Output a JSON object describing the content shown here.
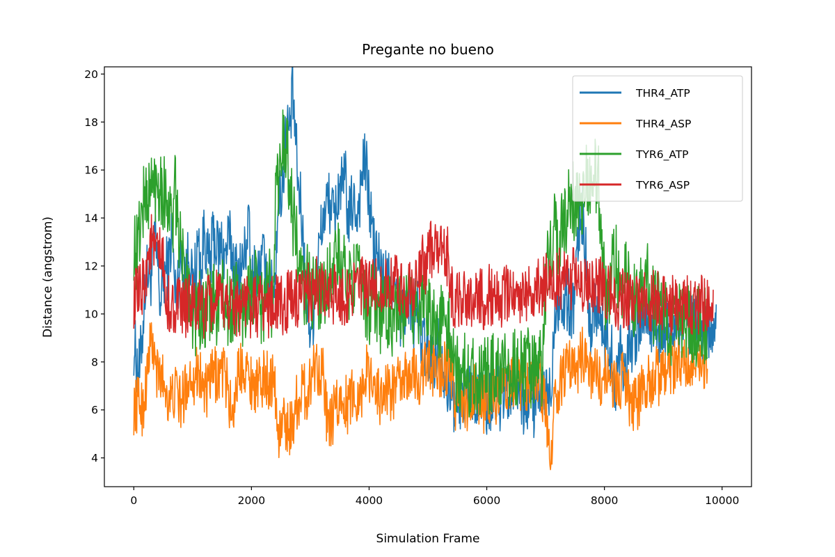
{
  "chart_data": {
    "type": "line",
    "title": "Pregante no bueno",
    "xlabel": "Simulation Frame",
    "ylabel": "Distance (angstrom)",
    "xlim": [
      -500,
      10500
    ],
    "ylim": [
      2.8,
      20.3
    ],
    "x_ticks": [
      0,
      2000,
      4000,
      6000,
      8000,
      10000
    ],
    "x_tick_labels": [
      "0",
      "2000",
      "4000",
      "6000",
      "8000",
      "10000"
    ],
    "y_ticks": [
      4,
      6,
      8,
      10,
      12,
      14,
      16,
      18,
      20
    ],
    "y_tick_labels": [
      "4",
      "6",
      "8",
      "10",
      "12",
      "14",
      "16",
      "18",
      "20"
    ],
    "grid": false,
    "legend_position": "upper-right",
    "x_step": 50,
    "series": [
      {
        "name": "THR4_ATP",
        "color": "#1f77b4",
        "noise": 1.4,
        "values": [
          8.8,
          8.0,
          7.6,
          9.4,
          11.5,
          11.8,
          11.6,
          13.1,
          12.2,
          10.4,
          11.4,
          11.9,
          12.0,
          13.6,
          10.7,
          11.5,
          12.3,
          11.8,
          11.9,
          12.9,
          10.7,
          12.0,
          13.0,
          11.6,
          13.8,
          12.2,
          12.0,
          13.3,
          12.9,
          12.6,
          12.9,
          12.3,
          13.0,
          12.9,
          12.1,
          11.7,
          11.9,
          12.0,
          12.7,
          13.9,
          11.0,
          11.7,
          11.5,
          11.8,
          12.4,
          11.2,
          11.7,
          10.8,
          11.3,
          14.8,
          15.0,
          16.1,
          18.0,
          17.5,
          19.2,
          17.3,
          15.1,
          14.3,
          12.1,
          10.1,
          9.5,
          10.1,
          11.5,
          12.7,
          13.7,
          14.3,
          14.7,
          14.6,
          13.8,
          14.6,
          15.5,
          15.1,
          15.6,
          13.6,
          14.6,
          14.5,
          14.2,
          15.1,
          16.3,
          16.1,
          14.7,
          13.6,
          12.3,
          12.5,
          11.8,
          11.3,
          11.6,
          11.0,
          11.6,
          10.8,
          10.3,
          9.6,
          10.4,
          9.8,
          10.9,
          9.6,
          10.5,
          9.5,
          8.9,
          8.6,
          8.3,
          8.2,
          8.1,
          8.8,
          8.5,
          8.0,
          7.7,
          7.0,
          6.6,
          6.4,
          6.2,
          6.6,
          6.7,
          6.6,
          7.2,
          6.4,
          6.8,
          6.1,
          6.8,
          7.2,
          6.1,
          6.4,
          6.4,
          6.3,
          6.9,
          6.1,
          6.7,
          6.3,
          6.8,
          6.7,
          7.2,
          6.7,
          6.1,
          6.1,
          6.5,
          6.8,
          6.2,
          6.5,
          6.6,
          6.5,
          6.9,
          6.4,
          7.1,
          10.2,
          10.6,
          10.6,
          10.1,
          10.7,
          10.5,
          10.2,
          10.9,
          12.8,
          14.3,
          13.9,
          11.4,
          9.6,
          9.9,
          10.6,
          10.2,
          9.3,
          9.0,
          9.1,
          8.6,
          7.9,
          6.9,
          8.6,
          8.6,
          7.3,
          9.1,
          8.9,
          8.7,
          8.9,
          9.5,
          10.0,
          10.2,
          9.4,
          9.3,
          9.7,
          9.7,
          8.8,
          9.2,
          9.5,
          9.0,
          9.1,
          9.3,
          9.7,
          9.1,
          9.6,
          9.3,
          9.1,
          9.5,
          9.5,
          9.7,
          9.1,
          9.2,
          9.4,
          9.2,
          9.7,
          10.0
        ]
      },
      {
        "name": "THR4_ASP",
        "color": "#ff7f0e",
        "noise": 1.2,
        "values": [
          6.1,
          6.2,
          6.4,
          6.0,
          6.9,
          8.1,
          9.0,
          8.1,
          7.4,
          7.4,
          7.3,
          6.8,
          6.5,
          6.4,
          6.8,
          6.6,
          6.2,
          6.6,
          7.1,
          7.4,
          7.5,
          7.3,
          7.9,
          7.1,
          6.9,
          6.6,
          7.3,
          7.4,
          7.5,
          7.4,
          7.7,
          7.4,
          6.9,
          5.9,
          6.1,
          7.3,
          7.6,
          8.0,
          7.9,
          7.3,
          7.2,
          7.1,
          7.0,
          7.0,
          7.3,
          7.4,
          7.2,
          7.3,
          7.0,
          4.8,
          5.2,
          5.5,
          5.4,
          5.2,
          5.4,
          6.3,
          6.4,
          6.8,
          6.8,
          6.6,
          7.2,
          7.8,
          8.0,
          7.7,
          7.9,
          6.5,
          5.2,
          5.3,
          5.9,
          6.2,
          6.0,
          6.9,
          6.3,
          6.0,
          6.9,
          6.3,
          6.7,
          6.7,
          6.9,
          7.7,
          7.3,
          7.6,
          7.1,
          6.7,
          6.4,
          6.8,
          6.9,
          6.7,
          6.8,
          6.8,
          7.2,
          7.0,
          7.2,
          7.3,
          7.7,
          7.5,
          7.4,
          7.2,
          7.6,
          7.8,
          7.8,
          7.6,
          7.8,
          8.0,
          7.6,
          7.9,
          7.6,
          7.7,
          7.6,
          6.3,
          6.4,
          6.9,
          6.4,
          6.2,
          6.1,
          6.4,
          6.8,
          6.4,
          6.8,
          6.2,
          6.9,
          6.5,
          6.9,
          6.5,
          6.8,
          7.1,
          6.8,
          7.2,
          7.0,
          7.1,
          6.8,
          7.2,
          7.1,
          7.2,
          7.0,
          7.5,
          7.7,
          7.4,
          7.6,
          6.3,
          6.1,
          4.9,
          4.2,
          6.5,
          6.5,
          7.1,
          7.5,
          7.6,
          7.8,
          7.5,
          7.9,
          7.9,
          8.2,
          8.3,
          8.5,
          7.5,
          7.6,
          7.8,
          7.2,
          7.0,
          7.3,
          7.6,
          7.2,
          7.3,
          7.3,
          6.8,
          7.2,
          7.4,
          6.5,
          6.5,
          6.3,
          6.3,
          6.4,
          6.9,
          7.1,
          7.1,
          7.2,
          7.4,
          7.5,
          7.2,
          7.6,
          7.6,
          7.7,
          7.7,
          7.7,
          8.0,
          7.9,
          7.8,
          7.8,
          7.7,
          7.7,
          7.8,
          7.6,
          7.8,
          7.9,
          7.9
        ]
      },
      {
        "name": "TYR6_ATP",
        "color": "#2ca02c",
        "noise": 1.7,
        "values": [
          13.0,
          12.5,
          13.5,
          14.5,
          14.9,
          14.9,
          15.3,
          15.3,
          15.6,
          15.5,
          15.1,
          15.0,
          14.5,
          13.5,
          15.0,
          14.1,
          12.3,
          12.0,
          11.4,
          11.3,
          10.0,
          9.9,
          10.5,
          9.5,
          9.7,
          10.3,
          10.2,
          10.6,
          10.0,
          10.8,
          10.9,
          10.2,
          10.2,
          9.9,
          10.8,
          10.7,
          10.0,
          10.1,
          10.1,
          11.3,
          10.6,
          11.0,
          10.9,
          10.4,
          10.2,
          10.8,
          11.3,
          10.3,
          14.3,
          15.7,
          15.9,
          17.6,
          16.9,
          15.5,
          14.2,
          13.5,
          12.0,
          11.5,
          10.8,
          11.3,
          10.8,
          10.8,
          10.8,
          11.1,
          11.0,
          10.7,
          11.5,
          12.0,
          11.8,
          12.4,
          12.1,
          11.6,
          11.9,
          11.4,
          11.6,
          11.8,
          11.5,
          11.0,
          11.3,
          10.6,
          10.3,
          10.5,
          10.8,
          10.1,
          10.0,
          10.2,
          9.9,
          10.0,
          9.8,
          9.7,
          9.9,
          10.0,
          10.1,
          10.1,
          10.4,
          10.2,
          10.7,
          10.3,
          10.1,
          10.3,
          10.8,
          10.0,
          9.7,
          9.5,
          9.4,
          9.7,
          9.5,
          9.5,
          8.8,
          7.4,
          7.7,
          7.4,
          7.5,
          7.7,
          7.3,
          7.8,
          7.7,
          7.3,
          7.2,
          7.6,
          7.7,
          7.4,
          7.6,
          7.5,
          7.6,
          7.9,
          7.6,
          7.6,
          7.8,
          7.7,
          7.7,
          8.1,
          7.6,
          7.6,
          7.9,
          7.5,
          7.7,
          7.6,
          7.6,
          7.8,
          10.9,
          12.3,
          12.6,
          13.5,
          13.1,
          13.3,
          14.5,
          13.7,
          14.7,
          15.1,
          14.4,
          14.4,
          14.1,
          15.6,
          15.6,
          15.5,
          15.7,
          15.6,
          15.5,
          12.2,
          11.2,
          10.7,
          11.1,
          11.9,
          12.1,
          11.7,
          11.1,
          11.9,
          11.3,
          11.0,
          10.7,
          11.3,
          11.2,
          11.2,
          11.5,
          11.1,
          10.4,
          10.2,
          10.2,
          10.3,
          9.8,
          10.3,
          9.6,
          9.5,
          9.7,
          9.5,
          9.8,
          9.4,
          9.4,
          9.6,
          9.2,
          9.5,
          9.5,
          9.5,
          9.5,
          9.3
        ]
      },
      {
        "name": "TYR6_ASP",
        "color": "#d62728",
        "noise": 1.3,
        "values": [
          10.6,
          10.7,
          10.7,
          11.2,
          11.7,
          12.5,
          13.0,
          12.4,
          12.5,
          12.3,
          12.2,
          10.0,
          10.5,
          10.1,
          10.4,
          10.4,
          10.0,
          10.4,
          10.2,
          10.6,
          10.4,
          10.0,
          10.3,
          10.4,
          10.1,
          10.4,
          10.3,
          10.3,
          10.7,
          10.4,
          10.4,
          10.5,
          10.4,
          10.5,
          10.5,
          10.3,
          10.4,
          10.6,
          10.4,
          10.5,
          10.1,
          10.3,
          10.3,
          10.5,
          10.4,
          10.2,
          10.3,
          10.4,
          10.5,
          10.4,
          10.3,
          10.2,
          10.4,
          10.9,
          10.6,
          10.6,
          10.4,
          10.4,
          10.7,
          10.9,
          11.0,
          11.0,
          11.2,
          10.9,
          10.9,
          10.8,
          10.5,
          10.7,
          10.9,
          11.0,
          10.9,
          10.7,
          10.7,
          10.9,
          11.1,
          11.3,
          11.2,
          11.0,
          11.2,
          11.1,
          10.9,
          11.0,
          11.1,
          11.2,
          11.2,
          11.0,
          11.3,
          11.2,
          11.1,
          11.3,
          11.2,
          11.0,
          11.2,
          11.0,
          11.2,
          11.0,
          11.2,
          11.5,
          12.0,
          12.0,
          12.5,
          12.8,
          12.8,
          12.6,
          12.4,
          12.5,
          12.4,
          12.3,
          10.8,
          10.5,
          10.6,
          10.5,
          10.9,
          10.7,
          10.6,
          10.7,
          10.9,
          10.9,
          10.6,
          10.6,
          10.8,
          10.8,
          10.7,
          10.8,
          10.9,
          10.6,
          10.9,
          10.7,
          10.8,
          11.0,
          11.0,
          10.8,
          11.1,
          11.0,
          10.9,
          11.0,
          10.9,
          11.1,
          11.1,
          11.2,
          11.3,
          11.4,
          11.5,
          11.4,
          11.5,
          11.5,
          11.4,
          11.6,
          11.5,
          11.4,
          11.6,
          11.5,
          11.3,
          11.4,
          11.5,
          11.3,
          11.3,
          11.2,
          11.1,
          11.4,
          11.3,
          10.9,
          10.8,
          10.9,
          10.5,
          10.5,
          10.6,
          10.6,
          10.6,
          10.6,
          10.6,
          10.7,
          10.7,
          10.5,
          10.4,
          10.4,
          10.6,
          10.5,
          10.5,
          10.6,
          10.4,
          10.5,
          10.3,
          10.3,
          10.4,
          10.5,
          10.3,
          10.2,
          10.3,
          10.5,
          10.4,
          10.5,
          10.4,
          10.5,
          10.2,
          10.3,
          10.5,
          10.6
        ]
      }
    ]
  }
}
